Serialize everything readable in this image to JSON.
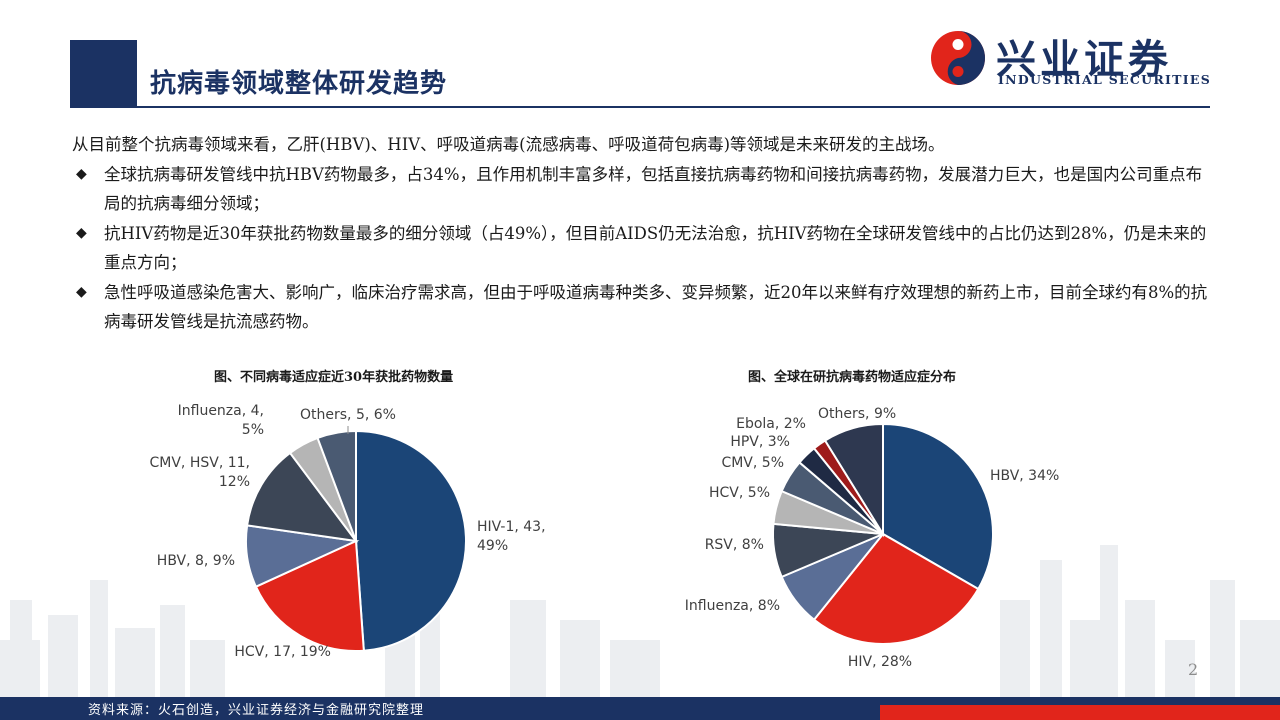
{
  "header": {
    "title": "抗病毒领域整体研发趋势",
    "logo_cn": "兴业证券",
    "logo_en": "INDUSTRIAL SECURITIES"
  },
  "content": {
    "intro": "从目前整个抗病毒领域来看，乙肝(HBV)、HIV、呼吸道病毒(流感病毒、呼吸道荷包病毒)等领域是未来研发的主战场。",
    "bullet_mark": "◆",
    "bullets": [
      "全球抗病毒研发管线中抗HBV药物最多，占34%，且作用机制丰富多样，包括直接抗病毒药物和间接抗病毒药物，发展潜力巨大，也是国内公司重点布局的抗病毒细分领域；",
      "抗HIV药物是近30年获批药物数量最多的细分领域（占49%），但目前AIDS仍无法治愈，抗HIV药物在全球研发管线中的占比仍达到28%，仍是未来的重点方向；",
      "急性呼吸道感染危害大、影响广，临床治疗需求高，但由于呼吸道病毒种类多、变异频繁，近20年以来鲜有疗效理想的新药上市，目前全球约有8%的抗病毒研发管线是抗流感药物。"
    ]
  },
  "chart_data": [
    {
      "type": "pie",
      "title": "图、不同病毒适应症近30年获批药物数量",
      "slices": [
        {
          "label": "HIV-1, 43,",
          "label2": "49%",
          "value": 43,
          "percent": 49,
          "color": "#1b4577"
        },
        {
          "label": "HCV, 17, 19%",
          "label2": "",
          "value": 17,
          "percent": 19,
          "color": "#e1251b"
        },
        {
          "label": "HBV, 8, 9%",
          "label2": "",
          "value": 8,
          "percent": 9,
          "color": "#5a6e96"
        },
        {
          "label": "CMV, HSV, 11,",
          "label2": "12%",
          "value": 11,
          "percent": 12,
          "color": "#3c4656"
        },
        {
          "label": "Influenza, 4,",
          "label2": "5%",
          "value": 4,
          "percent": 5,
          "color": "#b5b5b5"
        },
        {
          "label": "Others, 5, 6%",
          "label2": "",
          "value": 5,
          "percent": 6,
          "color": "#4a5a72"
        }
      ]
    },
    {
      "type": "pie",
      "title": "图、全球在研抗病毒药物适应症分布",
      "slices": [
        {
          "label": "HBV, 34%",
          "value": 34,
          "color": "#1b4577"
        },
        {
          "label": "HIV, 28%",
          "value": 28,
          "color": "#e1251b"
        },
        {
          "label": "Influenza, 8%",
          "value": 8,
          "color": "#5a6e96"
        },
        {
          "label": "RSV, 8%",
          "value": 8,
          "color": "#3c4656"
        },
        {
          "label": "HCV, 5%",
          "value": 5,
          "color": "#b5b5b5"
        },
        {
          "label": "CMV, 5%",
          "value": 5,
          "color": "#4a5a72"
        },
        {
          "label": "HPV, 3%",
          "value": 3,
          "color": "#1f2a44"
        },
        {
          "label": "Ebola, 2%",
          "value": 2,
          "color": "#9e1b1b"
        },
        {
          "label": "Others, 9%",
          "value": 9,
          "color": "#2e3850"
        }
      ]
    }
  ],
  "footer": {
    "source": "资料来源：火石创造，兴业证券经济与金融研究院整理",
    "page_number": "2"
  }
}
